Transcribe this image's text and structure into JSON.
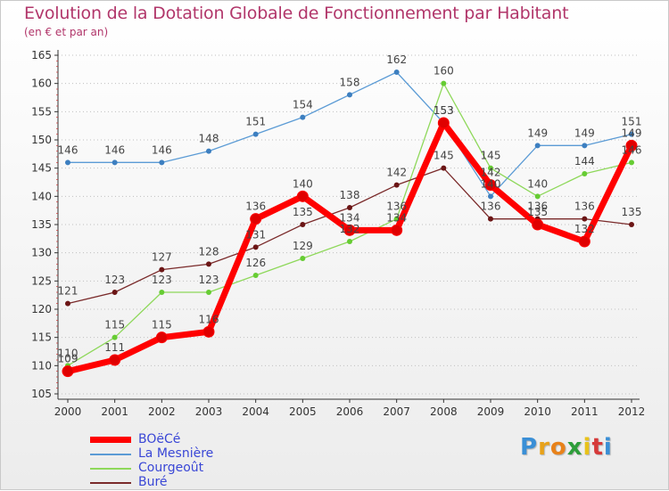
{
  "title": "Evolution de la Dotation Globale de Fonctionnement par Habitant",
  "subtitle": "(en € et par an)",
  "logo": "Proxiti",
  "colors": {
    "title": "#b1366a",
    "axis": "#333333",
    "grid": "#c0c0c0",
    "legend_text": "#3a47d6"
  },
  "chart_data": {
    "type": "line",
    "title": "Evolution de la Dotation Globale de Fonctionnement par Habitant",
    "subtitle": "(en € et par an)",
    "xlabel": "",
    "ylabel": "",
    "x": [
      "2000",
      "2001",
      "2002",
      "2003",
      "2004",
      "2005",
      "2006",
      "2007",
      "2008",
      "2009",
      "2010",
      "2011",
      "2012"
    ],
    "ylim": [
      105,
      165
    ],
    "yticks": [
      105,
      110,
      115,
      120,
      125,
      130,
      135,
      140,
      145,
      150,
      155,
      160,
      165
    ],
    "grid": "horizontal dotted",
    "legend_position": "bottom-left",
    "series": [
      {
        "name": "BOëCé",
        "color": "#ff0000",
        "marker": "#cc0000",
        "width": 7,
        "values": [
          109,
          111,
          115,
          116,
          136,
          140,
          134,
          134,
          153,
          142,
          135,
          132,
          149
        ]
      },
      {
        "name": "La Mesnière",
        "color": "#5b9bd5",
        "marker": "#3d7fc0",
        "width": 1.3,
        "values": [
          146,
          146,
          146,
          148,
          151,
          154,
          158,
          162,
          153,
          140,
          149,
          149,
          151
        ]
      },
      {
        "name": "Courgeoût",
        "color": "#8ed85a",
        "marker": "#66cc33",
        "width": 1.3,
        "values": [
          110,
          115,
          123,
          123,
          126,
          129,
          132,
          136,
          160,
          145,
          140,
          144,
          146
        ]
      },
      {
        "name": "Buré",
        "color": "#7a2a2a",
        "marker": "#6b1515",
        "width": 1.3,
        "values": [
          121,
          123,
          127,
          128,
          131,
          135,
          138,
          142,
          145,
          136,
          136,
          136,
          135
        ]
      }
    ]
  }
}
